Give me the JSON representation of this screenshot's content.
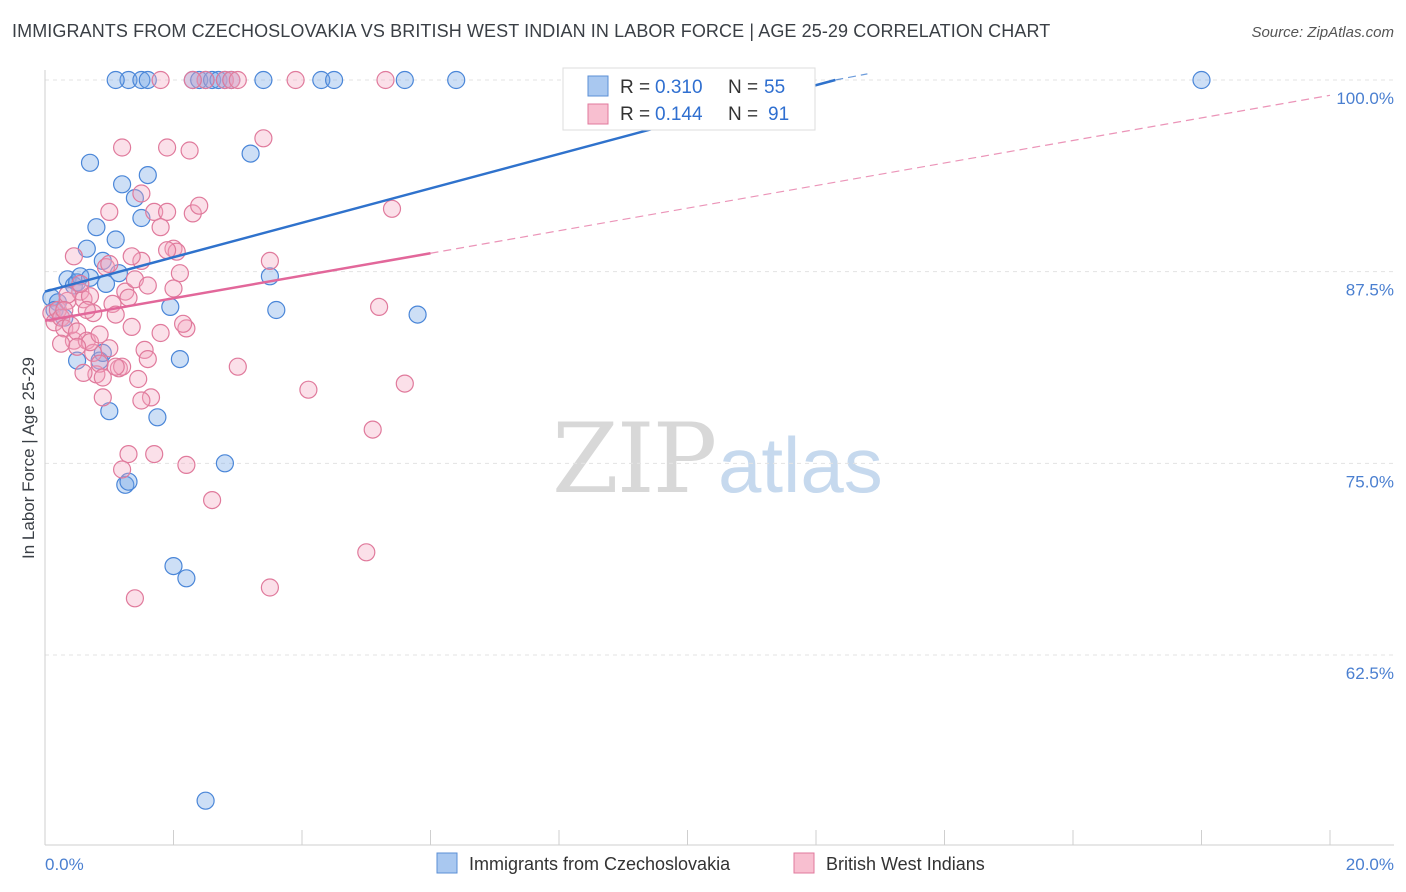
{
  "title": "IMMIGRANTS FROM CZECHOSLOVAKIA VS BRITISH WEST INDIAN IN LABOR FORCE | AGE 25-29 CORRELATION CHART",
  "source": "Source: ZipAtlas.com",
  "watermark": {
    "zip": "ZIP",
    "atlas": "atlas"
  },
  "legend": {
    "r_label": "R =",
    "n_label": "N =",
    "entries": [
      {
        "r": "0.310",
        "n": "55",
        "color": "#a9c8f0",
        "border": "#5b8fd6"
      },
      {
        "r": "0.144",
        "n": "91",
        "color": "#f8bfd0",
        "border": "#e07a9c"
      }
    ]
  },
  "chart_data": {
    "type": "scatter",
    "title": "IMMIGRANTS FROM CZECHOSLOVAKIA VS BRITISH WEST INDIAN IN LABOR FORCE | AGE 25-29 CORRELATION CHART",
    "xlabel": "",
    "ylabel": "In Labor Force | Age 25-29",
    "xlim": [
      0,
      20
    ],
    "ylim": [
      52,
      101.5
    ],
    "x_tick_labels": [
      "0.0%",
      "20.0%"
    ],
    "y_ticks": [
      62.5,
      75.0,
      87.5,
      100.0
    ],
    "y_tick_labels": [
      "62.5%",
      "75.0%",
      "87.5%",
      "100.0%"
    ],
    "grid": true,
    "legend_position": "top-center",
    "series": [
      {
        "name": "Immigrants from Czechoslovakia",
        "color": "#6fa3e6",
        "stroke": "#4a86d8",
        "line_color": "#2f72cc",
        "trend": {
          "x0": 0.0,
          "y0": 86.2,
          "x1": 12.3,
          "y1": 100.0,
          "dashed_to_x": 12.8,
          "dashed_to_y": 100.4
        },
        "points": [
          [
            0.1,
            85.8
          ],
          [
            0.2,
            85.5
          ],
          [
            0.15,
            85.0
          ],
          [
            0.3,
            84.5
          ],
          [
            0.35,
            87.0
          ],
          [
            0.45,
            86.6
          ],
          [
            0.5,
            86.8
          ],
          [
            0.55,
            87.2
          ],
          [
            0.7,
            87.1
          ],
          [
            0.65,
            89.0
          ],
          [
            0.8,
            90.4
          ],
          [
            0.9,
            88.2
          ],
          [
            0.95,
            86.7
          ],
          [
            1.1,
            89.6
          ],
          [
            1.15,
            87.4
          ],
          [
            0.7,
            94.6
          ],
          [
            1.2,
            93.2
          ],
          [
            1.4,
            92.3
          ],
          [
            1.5,
            91.0
          ],
          [
            1.6,
            93.8
          ],
          [
            0.5,
            81.7
          ],
          [
            0.85,
            81.7
          ],
          [
            0.9,
            82.2
          ],
          [
            1.0,
            78.4
          ],
          [
            1.25,
            73.6
          ],
          [
            1.3,
            73.8
          ],
          [
            1.75,
            78.0
          ],
          [
            1.95,
            85.2
          ],
          [
            2.1,
            81.8
          ],
          [
            2.0,
            68.3
          ],
          [
            2.2,
            67.5
          ],
          [
            2.8,
            75.0
          ],
          [
            3.2,
            95.2
          ],
          [
            3.5,
            87.2
          ],
          [
            3.6,
            85.0
          ],
          [
            5.8,
            84.7
          ],
          [
            2.5,
            53.0
          ],
          [
            1.3,
            100
          ],
          [
            1.5,
            100
          ],
          [
            1.6,
            100
          ],
          [
            2.3,
            100
          ],
          [
            2.4,
            100
          ],
          [
            2.5,
            100
          ],
          [
            2.6,
            100
          ],
          [
            2.7,
            100
          ],
          [
            2.8,
            100
          ],
          [
            2.9,
            100
          ],
          [
            3.4,
            100
          ],
          [
            4.3,
            100
          ],
          [
            4.5,
            100
          ],
          [
            5.6,
            100
          ],
          [
            6.4,
            100
          ],
          [
            9.5,
            100
          ],
          [
            18.0,
            100
          ],
          [
            1.1,
            100
          ]
        ]
      },
      {
        "name": "British West Indians",
        "color": "#f4a7c0",
        "stroke": "#e07a9c",
        "line_color": "#e2679a",
        "trend": {
          "x0": 0.0,
          "y0": 84.3,
          "x1": 6.0,
          "y1": 88.7,
          "dashed_to_x": 20.0,
          "dashed_to_y": 99.0
        },
        "points": [
          [
            0.1,
            84.8
          ],
          [
            0.15,
            84.2
          ],
          [
            0.2,
            85.0
          ],
          [
            0.25,
            84.5
          ],
          [
            0.3,
            83.8
          ],
          [
            0.35,
            85.6
          ],
          [
            0.4,
            84.0
          ],
          [
            0.45,
            83.0
          ],
          [
            0.5,
            83.6
          ],
          [
            0.55,
            86.2
          ],
          [
            0.6,
            85.7
          ],
          [
            0.65,
            83.0
          ],
          [
            0.7,
            85.9
          ],
          [
            0.75,
            82.2
          ],
          [
            0.8,
            80.8
          ],
          [
            0.85,
            81.5
          ],
          [
            0.9,
            79.3
          ],
          [
            0.95,
            87.8
          ],
          [
            1.0,
            88.0
          ],
          [
            1.05,
            85.4
          ],
          [
            1.1,
            84.7
          ],
          [
            1.15,
            81.2
          ],
          [
            1.2,
            81.3
          ],
          [
            1.25,
            86.2
          ],
          [
            1.3,
            85.8
          ],
          [
            1.35,
            83.9
          ],
          [
            1.4,
            87.0
          ],
          [
            1.45,
            80.5
          ],
          [
            1.5,
            88.2
          ],
          [
            1.55,
            82.4
          ],
          [
            1.6,
            86.6
          ],
          [
            1.65,
            79.3
          ],
          [
            1.7,
            91.4
          ],
          [
            1.8,
            83.5
          ],
          [
            1.9,
            91.4
          ],
          [
            2.0,
            89.0
          ],
          [
            2.05,
            88.8
          ],
          [
            2.1,
            87.4
          ],
          [
            2.2,
            83.8
          ],
          [
            2.3,
            91.3
          ],
          [
            2.4,
            91.8
          ],
          [
            1.0,
            91.4
          ],
          [
            1.2,
            95.6
          ],
          [
            1.9,
            95.6
          ],
          [
            2.25,
            95.4
          ],
          [
            1.5,
            92.6
          ],
          [
            3.4,
            96.2
          ],
          [
            3.5,
            88.2
          ],
          [
            3.0,
            81.3
          ],
          [
            1.3,
            75.6
          ],
          [
            1.7,
            75.6
          ],
          [
            2.2,
            74.9
          ],
          [
            2.6,
            72.6
          ],
          [
            1.2,
            74.6
          ],
          [
            1.4,
            66.2
          ],
          [
            3.5,
            66.9
          ],
          [
            5.0,
            69.2
          ],
          [
            4.1,
            79.8
          ],
          [
            5.1,
            77.2
          ],
          [
            5.2,
            85.2
          ],
          [
            5.6,
            80.2
          ],
          [
            5.4,
            91.6
          ],
          [
            0.7,
            82.9
          ],
          [
            0.85,
            83.4
          ],
          [
            1.0,
            82.5
          ],
          [
            1.1,
            81.3
          ],
          [
            0.6,
            80.9
          ],
          [
            0.5,
            82.6
          ],
          [
            0.35,
            86.0
          ],
          [
            0.25,
            82.8
          ],
          [
            0.45,
            88.5
          ],
          [
            2.5,
            100
          ],
          [
            2.8,
            100
          ],
          [
            2.9,
            100
          ],
          [
            3.0,
            100
          ],
          [
            2.3,
            100
          ],
          [
            3.9,
            100
          ],
          [
            5.3,
            100
          ],
          [
            1.8,
            100
          ],
          [
            0.9,
            80.6
          ],
          [
            0.75,
            84.8
          ],
          [
            1.5,
            79.1
          ],
          [
            1.8,
            90.4
          ],
          [
            2.0,
            86.4
          ],
          [
            0.65,
            85.0
          ],
          [
            0.55,
            86.7
          ],
          [
            0.3,
            85.0
          ],
          [
            1.9,
            88.9
          ],
          [
            2.15,
            84.1
          ],
          [
            1.6,
            81.8
          ],
          [
            1.35,
            88.5
          ]
        ]
      }
    ]
  }
}
